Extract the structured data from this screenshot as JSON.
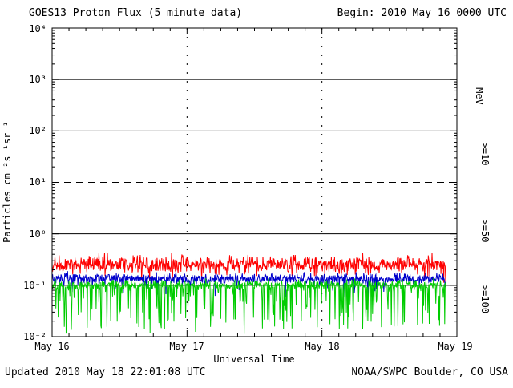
{
  "header": {
    "title": "GOES13 Proton Flux (5 minute data)",
    "begin": "Begin: 2010 May 16 0000 UTC"
  },
  "footer": {
    "updated": "Updated 2010 May 18 22:01:08 UTC",
    "source": "NOAA/SWPC Boulder, CO USA"
  },
  "chart_data": {
    "type": "line",
    "title": "GOES13 Proton Flux (5 minute data)",
    "xlabel": "Universal Time",
    "ylabel": "Particles cm⁻²s⁻¹sr⁻¹",
    "right_axis_label": "MeV",
    "x_ticks": [
      "May 16",
      "May 17",
      "May 18",
      "May 19"
    ],
    "y_ticks": [
      "10⁴",
      "10³",
      "10²",
      "10¹",
      "10⁰",
      "10⁻¹",
      "10⁻²"
    ],
    "ylim_log10": [
      -2,
      4
    ],
    "x_days": 3,
    "end_day": 2.92,
    "points_per_day": 288,
    "seed": 20100516,
    "grid": {
      "solid_decades": [
        3,
        2,
        0,
        -1
      ],
      "dashed_decades": [
        1
      ],
      "vertical_dotted_days": [
        1,
        2
      ]
    },
    "series": [
      {
        "label": ">=10",
        "color": "#ff0000",
        "log10_mean": -0.59,
        "log10_sigma": 0.085,
        "dip_prob": 0.05,
        "dip_min": 0.05,
        "dip_max": 0.25,
        "approx_flux": 0.25
      },
      {
        "label": ">=50",
        "color": "#0000cc",
        "log10_mean": -0.875,
        "log10_sigma": 0.055,
        "dip_prob": 0.06,
        "dip_min": 0.05,
        "dip_max": 0.3,
        "approx_flux": 0.13
      },
      {
        "label": ">=100",
        "color": "#00cc00",
        "log10_mean": -0.99,
        "log10_sigma": 0.05,
        "dip_prob": 0.2,
        "dip_min": 0.1,
        "dip_max": 0.9,
        "approx_flux": 0.1
      }
    ]
  }
}
